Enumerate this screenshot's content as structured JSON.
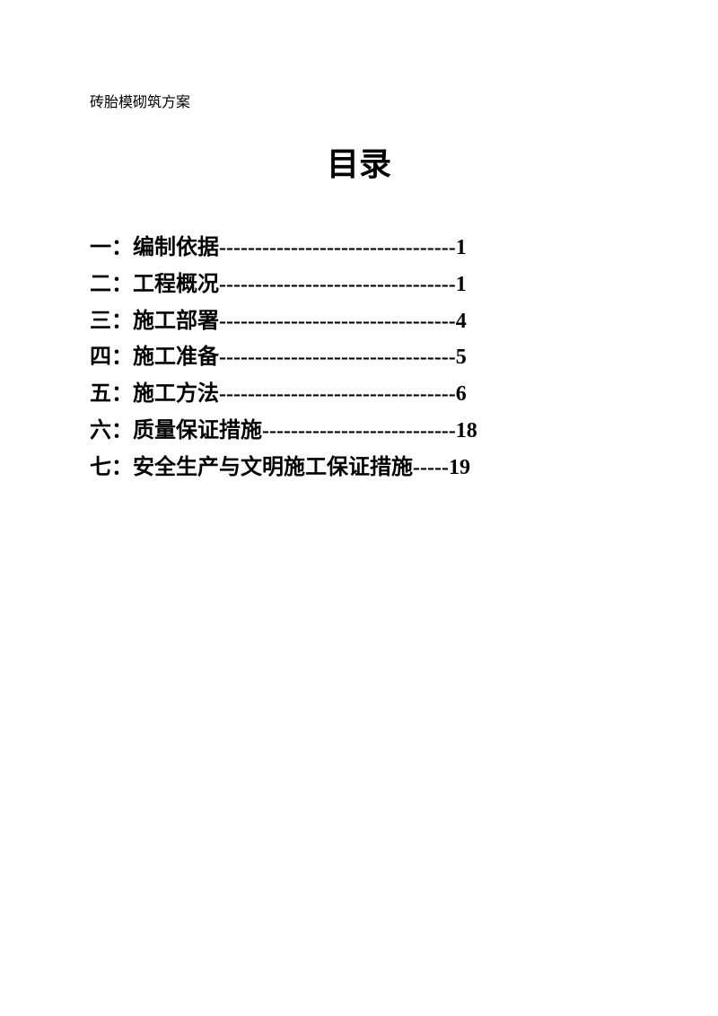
{
  "header": {
    "subtitle": "砖胎模砌筑方案"
  },
  "title": "目录",
  "toc": {
    "items": [
      {
        "number": "一：",
        "label": "编制依据",
        "dashes": "---------------------------------",
        "page": "1"
      },
      {
        "number": "二：",
        "label": "工程概况",
        "dashes": "---------------------------------",
        "page": "1"
      },
      {
        "number": "三：",
        "label": "施工部署",
        "dashes": "---------------------------------",
        "page": "4"
      },
      {
        "number": "四：",
        "label": "施工准备",
        "dashes": "---------------------------------",
        "page": "5"
      },
      {
        "number": "五：",
        "label": "施工方法",
        "dashes": "---------------------------------",
        "page": "6"
      },
      {
        "number": "六：",
        "label": "质量保证措施",
        "dashes": "---------------------------",
        "page": "18"
      },
      {
        "number": "七：",
        "label": "安全生产与文明施工保证措施",
        "dashes": "-----",
        "page": "19"
      }
    ]
  },
  "styling": {
    "background_color": "#ffffff",
    "text_color": "#000000",
    "header_fontsize": 16,
    "title_fontsize": 36,
    "toc_fontsize": 24,
    "font_family": "SimSun"
  }
}
